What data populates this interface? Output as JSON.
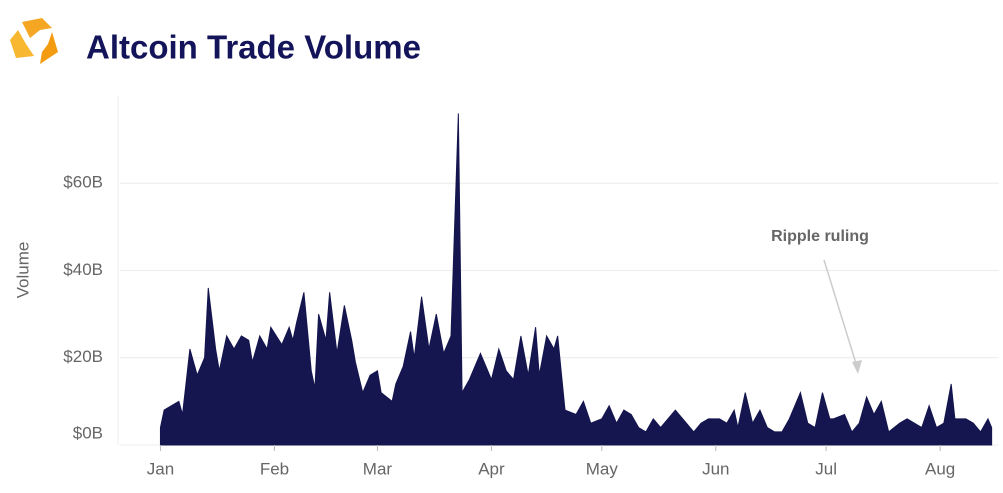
{
  "chart_data": {
    "type": "area",
    "title": "Altcoin Trade Volume",
    "y_label": "Volume",
    "annotation": "Ripple ruling",
    "color": "#15154f",
    "grid": true,
    "x": [
      0,
      1,
      3,
      5,
      6,
      8,
      10,
      12,
      13,
      15,
      16,
      18,
      20,
      22,
      24,
      25,
      27,
      29,
      30,
      33,
      35,
      36,
      37,
      39,
      41,
      42,
      43,
      45,
      46,
      48,
      50,
      52,
      53,
      55,
      57,
      59,
      60,
      63,
      64,
      66,
      68,
      69,
      71,
      73,
      75,
      77,
      79,
      81,
      82,
      84,
      87,
      90,
      92,
      94,
      96,
      98,
      100,
      102,
      103,
      105,
      107,
      108,
      110,
      113,
      115,
      117,
      120,
      122,
      124,
      126,
      128,
      130,
      132,
      134,
      136,
      138,
      140,
      143,
      145,
      147,
      149,
      152,
      154,
      156,
      157,
      159,
      161,
      163,
      165,
      167,
      169,
      171,
      174,
      176,
      178,
      180,
      182,
      183,
      186,
      188,
      190,
      192,
      194,
      196,
      198,
      201,
      203,
      205,
      207,
      209,
      211,
      213,
      215,
      216,
      219,
      221,
      223,
      225,
      226
    ],
    "values": [
      4,
      8,
      9,
      10,
      7,
      22,
      16,
      20,
      36,
      22,
      17,
      25,
      22,
      25,
      24,
      19,
      25,
      22,
      27,
      23,
      27,
      24,
      28,
      35,
      17,
      13,
      30,
      24,
      35,
      21,
      32,
      24,
      19,
      12,
      16,
      17,
      12,
      10,
      14,
      18,
      26,
      20,
      34,
      22,
      30,
      21,
      25,
      76,
      12,
      15,
      21,
      15,
      22,
      17,
      15,
      25,
      16,
      27,
      16,
      25,
      22,
      25,
      8,
      7,
      10,
      5,
      6,
      9,
      5,
      8,
      7,
      4,
      3,
      6,
      4,
      6,
      8,
      5,
      3,
      5,
      6,
      6,
      5,
      8,
      4,
      12,
      5,
      8,
      4,
      3,
      3,
      6,
      12,
      5,
      4,
      12,
      6,
      6,
      7,
      3,
      5,
      11,
      7,
      10,
      3,
      5,
      6,
      5,
      4,
      9,
      4,
      5,
      14,
      6,
      6,
      5,
      3,
      6,
      4
    ],
    "xlim": [
      -11,
      228
    ],
    "xticks": [
      {
        "value": 0,
        "label": "Jan"
      },
      {
        "value": 31,
        "label": "Feb"
      },
      {
        "value": 59,
        "label": "Mar"
      },
      {
        "value": 90,
        "label": "Apr"
      },
      {
        "value": 120,
        "label": "May"
      },
      {
        "value": 151,
        "label": "Jun"
      },
      {
        "value": 181,
        "label": "Jul"
      },
      {
        "value": 212,
        "label": "Aug"
      }
    ],
    "ylim": [
      0,
      80
    ],
    "yticks": [
      {
        "value": 0,
        "label": "$0B"
      },
      {
        "value": 20,
        "label": "$20B"
      },
      {
        "value": 40,
        "label": "$40B"
      },
      {
        "value": 60,
        "label": "$60B"
      }
    ]
  }
}
